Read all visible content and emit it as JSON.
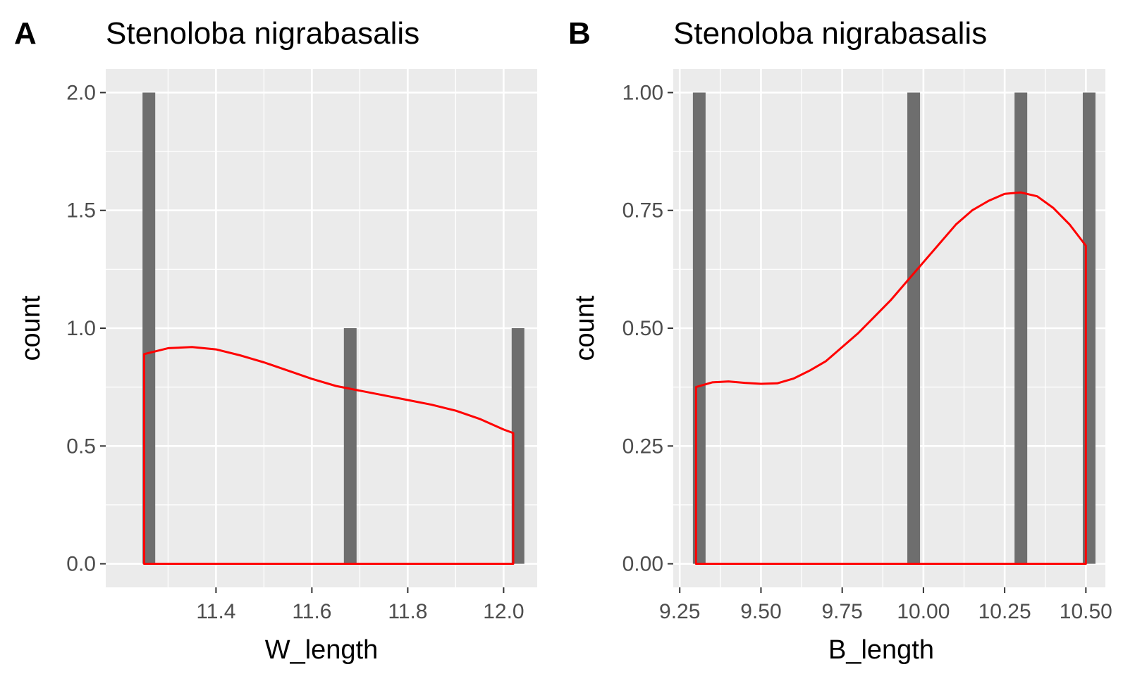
{
  "chart_data": [
    {
      "type": "bar",
      "panel_label": "A",
      "title": "Stenoloba nigrabasalis",
      "xlabel": "W_length",
      "ylabel": "count",
      "xlim": [
        11.17,
        12.07
      ],
      "ylim": [
        -0.1,
        2.1
      ],
      "x_ticks": [
        11.4,
        11.6,
        11.8,
        12.0
      ],
      "x_tick_labels": [
        "11.4",
        "11.6",
        "11.8",
        "12.0"
      ],
      "y_ticks": [
        0,
        0.5,
        1,
        1.5,
        2
      ],
      "y_tick_labels": [
        "0.0",
        "0.5",
        "1.0",
        "1.5",
        "2.0"
      ],
      "x_minor_ticks": [
        11.3,
        11.5,
        11.7,
        11.9
      ],
      "y_minor_ticks": [
        0.25,
        0.75,
        1.25,
        1.75
      ],
      "grid": true,
      "bars": [
        {
          "x": 11.26,
          "count": 2
        },
        {
          "x": 11.68,
          "count": 1
        },
        {
          "x": 12.03,
          "count": 1
        }
      ],
      "bar_color": "#6e6e6e",
      "density_curve": {
        "color": "#ff0000",
        "x": [
          11.25,
          11.3,
          11.35,
          11.4,
          11.45,
          11.5,
          11.55,
          11.6,
          11.65,
          11.7,
          11.75,
          11.8,
          11.85,
          11.9,
          11.95,
          12.0,
          12.02
        ],
        "y": [
          0.89,
          0.915,
          0.92,
          0.91,
          0.885,
          0.855,
          0.82,
          0.785,
          0.755,
          0.735,
          0.715,
          0.695,
          0.675,
          0.65,
          0.615,
          0.57,
          0.555
        ]
      }
    },
    {
      "type": "bar",
      "panel_label": "B",
      "title": "Stenoloba nigrabasalis",
      "xlabel": "B_length",
      "ylabel": "count",
      "xlim": [
        9.23,
        10.56
      ],
      "ylim": [
        -0.05,
        1.05
      ],
      "x_ticks": [
        9.25,
        9.5,
        9.75,
        10.0,
        10.25,
        10.5
      ],
      "x_tick_labels": [
        "9.25",
        "9.50",
        "9.75",
        "10.00",
        "10.25",
        "10.50"
      ],
      "y_ticks": [
        0,
        0.25,
        0.5,
        0.75,
        1
      ],
      "y_tick_labels": [
        "0.00",
        "0.25",
        "0.50",
        "0.75",
        "1.00"
      ],
      "x_minor_ticks": [
        9.375,
        9.625,
        9.875,
        10.125,
        10.375
      ],
      "y_minor_ticks": [
        0.125,
        0.375,
        0.625,
        0.875
      ],
      "grid": true,
      "bars": [
        {
          "x": 9.31,
          "count": 1
        },
        {
          "x": 9.97,
          "count": 1
        },
        {
          "x": 10.3,
          "count": 1
        },
        {
          "x": 10.51,
          "count": 1
        }
      ],
      "bar_color": "#6e6e6e",
      "density_curve": {
        "color": "#ff0000",
        "x": [
          9.3,
          9.35,
          9.4,
          9.45,
          9.5,
          9.55,
          9.6,
          9.65,
          9.7,
          9.75,
          9.8,
          9.85,
          9.9,
          9.95,
          10.0,
          10.05,
          10.1,
          10.15,
          10.2,
          10.25,
          10.3,
          10.35,
          10.4,
          10.45,
          10.5
        ],
        "y": [
          0.375,
          0.385,
          0.387,
          0.384,
          0.382,
          0.383,
          0.393,
          0.41,
          0.43,
          0.46,
          0.49,
          0.525,
          0.56,
          0.6,
          0.64,
          0.68,
          0.72,
          0.75,
          0.77,
          0.785,
          0.788,
          0.78,
          0.755,
          0.72,
          0.675
        ]
      }
    }
  ]
}
